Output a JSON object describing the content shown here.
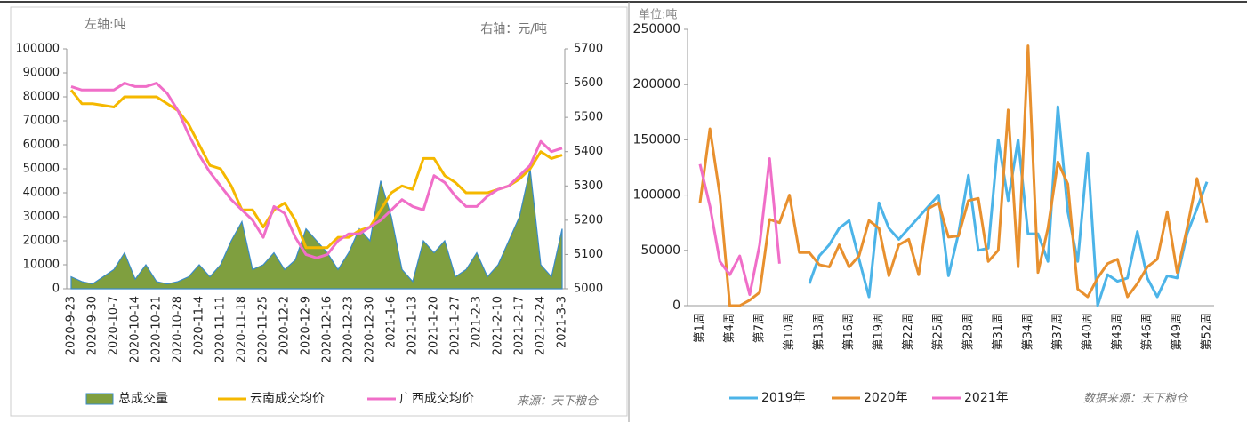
{
  "chart_data": [
    {
      "type": "area",
      "left_axis_label": "左轴:吨",
      "right_axis_label": "右轴：元/吨",
      "source": "来源：天下粮仓",
      "categories": [
        "2020-9-23",
        null,
        "2020-9-30",
        null,
        "2020-10-7",
        null,
        "2020-10-14",
        null,
        "2020-10-21",
        null,
        "2020-10-28",
        null,
        "2020-11-4",
        null,
        "2020-11-11",
        null,
        "2020-11-18",
        null,
        "2020-11-25",
        null,
        "2020-12-2",
        null,
        "2020-12-9",
        null,
        "2020-12-16",
        null,
        "2020-12-23",
        null,
        "2020-12-30",
        null,
        "2021-1-6",
        null,
        "2021-1-13",
        null,
        "2021-1-20",
        null,
        "2021-1-27",
        null,
        "2021-2-3",
        null,
        "2021-2-10",
        null,
        "2021-2-17",
        null,
        "2021-2-24",
        null,
        "2021-3-3"
      ],
      "series": [
        {
          "name": "总成交量",
          "type": "area",
          "color": "#7f9f3f",
          "line_color": "#3a8bc8",
          "values": [
            5000,
            3000,
            2000,
            5000,
            8000,
            15000,
            4000,
            10000,
            3000,
            2000,
            3000,
            5000,
            10000,
            5000,
            10000,
            20000,
            28000,
            8000,
            10000,
            15000,
            8000,
            12000,
            25000,
            20000,
            15000,
            8000,
            15000,
            25000,
            20000,
            45000,
            30000,
            8000,
            3000,
            20000,
            15000,
            20000,
            5000,
            8000,
            15000,
            5000,
            10000,
            20000,
            30000,
            50000,
            10000,
            5000,
            25000
          ]
        },
        {
          "name": "云南成交均价",
          "type": "line",
          "axis": "y2",
          "color": "#f5b800",
          "values": [
            5580,
            5540,
            5540,
            5535,
            5530,
            5560,
            5560,
            5560,
            5560,
            5540,
            5520,
            5480,
            5420,
            5360,
            5350,
            5300,
            5230,
            5230,
            5180,
            5230,
            5250,
            5200,
            5120,
            5120,
            5120,
            5150,
            5150,
            5170,
            5180,
            5230,
            5280,
            5300,
            5290,
            5380,
            5380,
            5330,
            5310,
            5280,
            5280,
            5280,
            5290,
            5300,
            5320,
            5350,
            5400,
            5380,
            5390
          ]
        },
        {
          "name": "广西成交均价",
          "type": "line",
          "axis": "y2",
          "color": "#f06ec8",
          "values": [
            5590,
            5580,
            5580,
            5580,
            5580,
            5600,
            5590,
            5590,
            5600,
            5570,
            5520,
            5450,
            5390,
            5340,
            5300,
            5260,
            5230,
            5200,
            5150,
            5240,
            5220,
            5150,
            5100,
            5090,
            5100,
            5140,
            5160,
            5160,
            5180,
            5200,
            5230,
            5260,
            5240,
            5230,
            5330,
            5310,
            5270,
            5240,
            5240,
            5270,
            5290,
            5300,
            5330,
            5360,
            5430,
            5400,
            5410
          ]
        }
      ],
      "ylim": [
        0,
        100000
      ],
      "yticks": [
        0,
        10000,
        20000,
        30000,
        40000,
        50000,
        60000,
        70000,
        80000,
        90000,
        100000
      ],
      "y2lim": [
        5000,
        5700
      ],
      "y2ticks": [
        5000,
        5100,
        5200,
        5300,
        5400,
        5500,
        5600,
        5700
      ],
      "legend": "bottom"
    },
    {
      "type": "line",
      "unit_label": "单位:吨",
      "source": "数据来源：天下粮仓",
      "categories": [
        "第1周",
        null,
        null,
        "第4周",
        null,
        null,
        "第7周",
        null,
        null,
        "第10周",
        null,
        null,
        "第13周",
        null,
        null,
        "第16周",
        null,
        null,
        "第19周",
        null,
        null,
        "第22周",
        null,
        null,
        "第25周",
        null,
        null,
        "第28周",
        null,
        null,
        "第31周",
        null,
        null,
        "第34周",
        null,
        null,
        "第37周",
        null,
        null,
        "第40周",
        null,
        null,
        "第43周",
        null,
        null,
        "第46周",
        null,
        null,
        "第49周",
        null,
        null,
        "第52周"
      ],
      "series": [
        {
          "name": "2019年",
          "color": "#4cb4e8",
          "values": [
            null,
            null,
            null,
            null,
            null,
            null,
            null,
            null,
            null,
            null,
            null,
            20000,
            45000,
            55000,
            70000,
            77000,
            42000,
            8000,
            93000,
            70000,
            60000,
            70000,
            80000,
            90000,
            100000,
            27000,
            65000,
            118000,
            50000,
            52000,
            150000,
            95000,
            150000,
            65000,
            65000,
            40000,
            180000,
            85000,
            40000,
            138000,
            0,
            28000,
            22000,
            25000,
            67000,
            25000,
            8000,
            27000,
            25000,
            65000,
            88000,
            112000
          ]
        },
        {
          "name": "2020年",
          "color": "#e8902e",
          "values": [
            93000,
            160000,
            100000,
            0,
            0,
            5000,
            12000,
            78000,
            75000,
            100000,
            48000,
            48000,
            37000,
            35000,
            55000,
            35000,
            45000,
            77000,
            70000,
            27000,
            55000,
            60000,
            28000,
            88000,
            93000,
            62000,
            63000,
            95000,
            97000,
            40000,
            50000,
            177000,
            35000,
            235000,
            30000,
            70000,
            130000,
            110000,
            15000,
            8000,
            25000,
            38000,
            42000,
            8000,
            20000,
            35000,
            42000,
            85000,
            30000,
            70000,
            115000,
            75000
          ]
        },
        {
          "name": "2021年",
          "color": "#f06ec8",
          "values": [
            128000,
            90000,
            40000,
            28000,
            45000,
            10000,
            55000,
            133000,
            38000,
            null,
            null,
            null,
            null,
            null,
            null,
            null,
            null,
            null,
            null,
            null,
            null,
            null,
            null,
            null,
            null,
            null,
            null,
            null,
            null,
            null,
            null,
            null,
            null,
            null,
            null,
            null,
            null,
            null,
            null,
            null,
            null,
            null,
            null,
            null,
            null,
            null,
            null,
            null,
            null,
            null,
            null,
            null
          ]
        }
      ],
      "ylim": [
        0,
        250000
      ],
      "yticks": [
        0,
        50000,
        100000,
        150000,
        200000,
        250000
      ],
      "legend": "bottom"
    }
  ]
}
